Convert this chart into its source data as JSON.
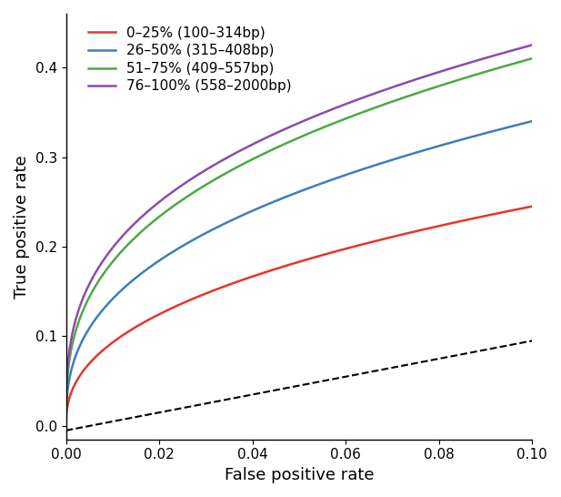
{
  "title": "",
  "xlabel": "False positive rate",
  "ylabel": "True positive rate",
  "xlim": [
    0.0,
    0.1
  ],
  "ylim": [
    -0.015,
    0.46
  ],
  "xticks": [
    0.0,
    0.02,
    0.04,
    0.06,
    0.08,
    0.1
  ],
  "yticks": [
    0.0,
    0.1,
    0.2,
    0.3,
    0.4
  ],
  "legend_labels": [
    "0–25% (100–314bp)",
    "26–50% (315–408bp)",
    "51–75% (409–557bp)",
    "76–100% (558–2000bp)"
  ],
  "line_colors": [
    "#e8352a",
    "#3c7fba",
    "#4aaa42",
    "#8b4cab"
  ],
  "background_color": "#ffffff",
  "curve_params": {
    "red": {
      "a": 0.245,
      "b": 0.42
    },
    "blue": {
      "a": 0.34,
      "b": 0.38
    },
    "green": {
      "a": 0.41,
      "b": 0.35
    },
    "purple": {
      "a": 0.425,
      "b": 0.33
    }
  },
  "diag_slope": 1.0,
  "diag_intercept": -0.005
}
